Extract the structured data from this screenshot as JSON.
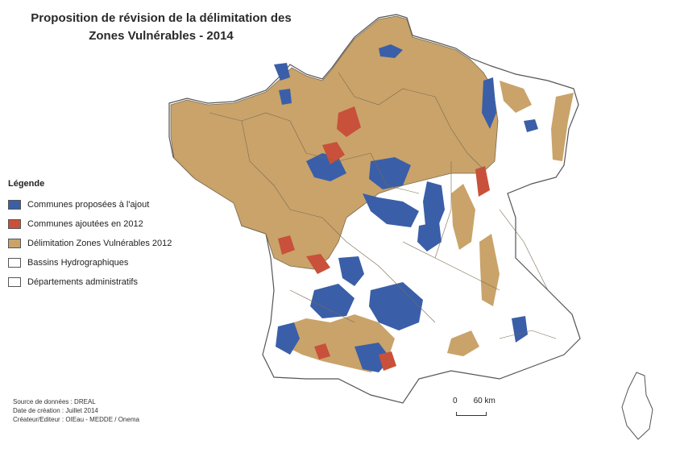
{
  "title": {
    "line1": "Proposition de révision de la délimitation des",
    "line2": "Zones Vulnérables - 2014"
  },
  "legend": {
    "title": "Légende",
    "items": [
      {
        "label": "Communes proposées à l'ajout",
        "color": "#3a5fa8"
      },
      {
        "label": "Communes ajoutées en 2012",
        "color": "#c9503a"
      },
      {
        "label": "Délimitation Zones Vulnérables 2012",
        "color": "#c9a36a"
      },
      {
        "label": "Bassins Hydrographiques",
        "color": "#ffffff"
      },
      {
        "label": "Départements administratifs",
        "color": "#ffffff"
      }
    ]
  },
  "credits": {
    "source": "Source de données : DREAL",
    "date": "Date de création : Juillet 2014",
    "creator": "Créateur/Editeur : OIEau - MEDDE / Onema"
  },
  "scale": {
    "start": "0",
    "end": "60",
    "unit": "km"
  },
  "colors": {
    "ajout": "#3a5fa8",
    "ajoutees2012": "#c9503a",
    "zv2012": "#c9a36a",
    "outline": "#555555",
    "dept": "#7a6a50"
  }
}
